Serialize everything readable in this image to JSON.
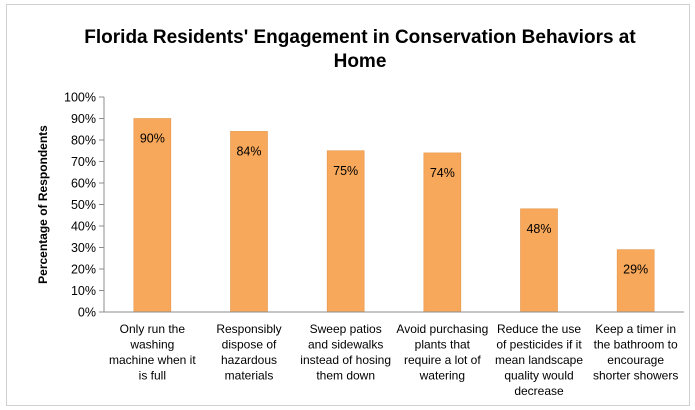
{
  "chart_data": {
    "type": "bar",
    "title_lines": [
      "Florida Residents' Engagement in Conservation Behaviors at",
      "Home"
    ],
    "ylabel": "Percentage of Respondents",
    "xlabel": "",
    "ylim": [
      0,
      100
    ],
    "ytick_labels": [
      "0%",
      "10%",
      "20%",
      "30%",
      "40%",
      "50%",
      "60%",
      "70%",
      "80%",
      "90%",
      "100%"
    ],
    "grid": "none",
    "legend": "none",
    "bar_color": "#F8A85B",
    "bar_edge_color": "#E39549",
    "categories": [
      [
        "Only run the",
        "washing",
        "machine when it",
        "is full"
      ],
      [
        "Responsibly",
        "dispose of",
        "hazardous",
        "materials"
      ],
      [
        "Sweep patios",
        "and sidewalks",
        "instead of hosing",
        "them down"
      ],
      [
        "Avoid purchasing",
        "plants that",
        "require a lot of",
        "watering"
      ],
      [
        "Reduce the use",
        "of pesticides if it",
        "mean landscape",
        "quality would",
        "decrease"
      ],
      [
        "Keep a timer in",
        "the bathroom to",
        "encourage",
        "shorter showers"
      ]
    ],
    "values": [
      90,
      84,
      75,
      74,
      48,
      29
    ],
    "data_labels": [
      "90%",
      "84%",
      "75%",
      "74%",
      "48%",
      "29%"
    ]
  }
}
